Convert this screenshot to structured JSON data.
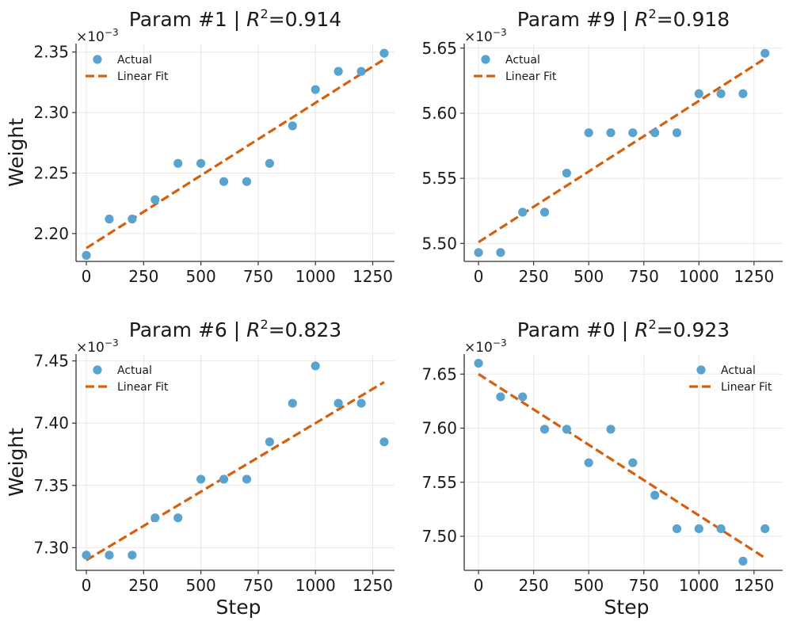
{
  "colors": {
    "actual": "#5BA3CF",
    "fit": "#D35F0F"
  },
  "chart_data": [
    {
      "type": "scatter",
      "title": "Param #1 | R²=0.914",
      "title_prefix": "Param #1 | ",
      "title_r": "R",
      "title_sup": "2",
      "title_suffix": "=0.914",
      "xlabel": "",
      "ylabel": "Weight",
      "y_offset_base": "×10",
      "y_offset_exp": "−3",
      "legend_position": "top-left",
      "xlim": [
        -45,
        1345
      ],
      "ylim": [
        2.177,
        2.357
      ],
      "x_ticks": [
        0,
        250,
        500,
        750,
        1000,
        1250
      ],
      "y_ticks": [
        2.2,
        2.25,
        2.3,
        2.35
      ],
      "y_tick_labels": [
        "2.20",
        "2.25",
        "2.30",
        "2.35"
      ],
      "grid": true,
      "series": [
        {
          "name": "Actual",
          "kind": "points",
          "x": [
            0,
            100,
            200,
            300,
            400,
            500,
            600,
            700,
            800,
            900,
            1000,
            1100,
            1200,
            1300
          ],
          "y": [
            2.182,
            2.212,
            2.212,
            2.228,
            2.258,
            2.258,
            2.243,
            2.243,
            2.258,
            2.289,
            2.319,
            2.334,
            2.334,
            2.349
          ]
        },
        {
          "name": "Linear Fit",
          "kind": "line",
          "x": [
            0,
            1300
          ],
          "y": [
            2.188,
            2.344
          ]
        }
      ]
    },
    {
      "type": "scatter",
      "title": "Param #9 | R²=0.918",
      "title_prefix": "Param #9 | ",
      "title_r": "R",
      "title_sup": "2",
      "title_suffix": "=0.918",
      "xlabel": "",
      "ylabel": "",
      "y_offset_base": "×10",
      "y_offset_exp": "−3",
      "legend_position": "top-left",
      "xlim": [
        -65,
        1380
      ],
      "ylim": [
        5.4862,
        5.6535
      ],
      "x_ticks": [
        0,
        250,
        500,
        750,
        1000,
        1250
      ],
      "y_ticks": [
        5.5,
        5.55,
        5.6,
        5.65
      ],
      "y_tick_labels": [
        "5.50",
        "5.55",
        "5.60",
        "5.65"
      ],
      "grid": true,
      "series": [
        {
          "name": "Actual",
          "kind": "points",
          "x": [
            0,
            100,
            200,
            300,
            400,
            500,
            600,
            700,
            800,
            900,
            1000,
            1100,
            1200,
            1300
          ],
          "y": [
            5.493,
            5.493,
            5.524,
            5.524,
            5.554,
            5.585,
            5.585,
            5.585,
            5.585,
            5.585,
            5.615,
            5.615,
            5.615,
            5.646
          ]
        },
        {
          "name": "Linear Fit",
          "kind": "line",
          "x": [
            0,
            1300
          ],
          "y": [
            5.501,
            5.642
          ]
        }
      ]
    },
    {
      "type": "scatter",
      "title": "Param #6 | R²=0.823",
      "title_prefix": "Param #6 | ",
      "title_r": "R",
      "title_sup": "2",
      "title_suffix": "=0.823",
      "xlabel": "Step",
      "ylabel": "Weight",
      "y_offset_base": "×10",
      "y_offset_exp": "−3",
      "legend_position": "top-left",
      "xlim": [
        -45,
        1345
      ],
      "ylim": [
        7.2818,
        7.4555
      ],
      "x_ticks": [
        0,
        250,
        500,
        750,
        1000,
        1250
      ],
      "y_ticks": [
        7.3,
        7.35,
        7.4,
        7.45
      ],
      "y_tick_labels": [
        "7.30",
        "7.35",
        "7.40",
        "7.45"
      ],
      "grid": true,
      "series": [
        {
          "name": "Actual",
          "kind": "points",
          "x": [
            0,
            100,
            200,
            300,
            400,
            500,
            600,
            700,
            800,
            900,
            1000,
            1100,
            1200,
            1300
          ],
          "y": [
            7.294,
            7.294,
            7.294,
            7.324,
            7.324,
            7.355,
            7.355,
            7.355,
            7.385,
            7.416,
            7.446,
            7.416,
            7.416,
            7.385
          ]
        },
        {
          "name": "Linear Fit",
          "kind": "line",
          "x": [
            0,
            1300
          ],
          "y": [
            7.29,
            7.433
          ]
        }
      ]
    },
    {
      "type": "scatter",
      "title": "Param #0 | R²=0.923",
      "title_prefix": "Param #0 | ",
      "title_r": "R",
      "title_sup": "2",
      "title_suffix": "=0.923",
      "xlabel": "Step",
      "ylabel": "",
      "y_offset_base": "×10",
      "y_offset_exp": "−3",
      "legend_position": "top-right",
      "xlim": [
        -65,
        1380
      ],
      "ylim": [
        7.4685,
        7.6685
      ],
      "x_ticks": [
        0,
        250,
        500,
        750,
        1000,
        1250
      ],
      "y_ticks": [
        7.5,
        7.55,
        7.6,
        7.65
      ],
      "y_tick_labels": [
        "7.50",
        "7.55",
        "7.60",
        "7.65"
      ],
      "grid": true,
      "series": [
        {
          "name": "Actual",
          "kind": "points",
          "x": [
            0,
            100,
            200,
            300,
            400,
            500,
            600,
            700,
            800,
            900,
            1000,
            1100,
            1200,
            1300
          ],
          "y": [
            7.66,
            7.629,
            7.629,
            7.599,
            7.599,
            7.568,
            7.599,
            7.568,
            7.538,
            7.507,
            7.507,
            7.507,
            7.477,
            7.507
          ]
        },
        {
          "name": "Linear Fit",
          "kind": "line",
          "x": [
            0,
            1300
          ],
          "y": [
            7.65,
            7.48
          ]
        }
      ]
    }
  ]
}
